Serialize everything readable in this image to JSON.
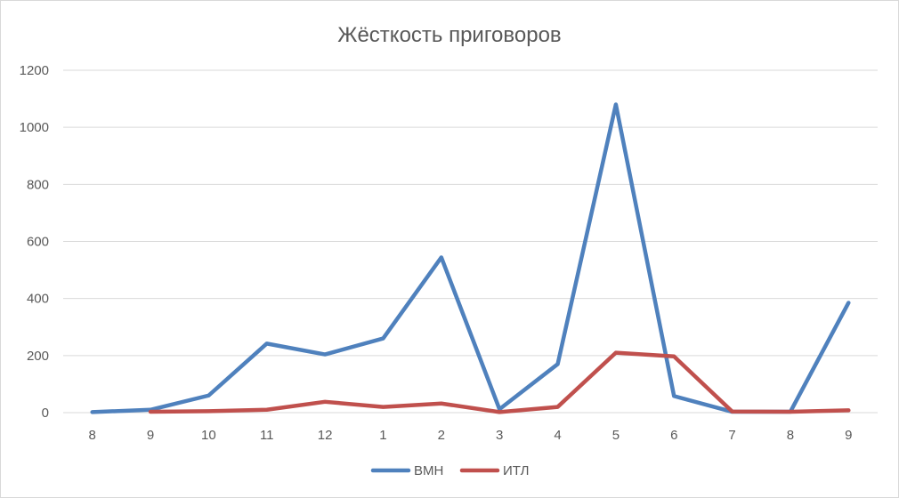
{
  "chart_data": {
    "type": "line",
    "title": "Жёсткость приговоров",
    "xlabel": "",
    "ylabel": "",
    "categories": [
      "8",
      "9",
      "10",
      "11",
      "12",
      "1",
      "2",
      "3",
      "4",
      "5",
      "6",
      "7",
      "8",
      "9"
    ],
    "ylim": [
      0,
      1200
    ],
    "yticks": [
      0,
      200,
      400,
      600,
      800,
      1000,
      1200
    ],
    "grid": true,
    "legend": "bottom",
    "series": [
      {
        "name": "ВМН",
        "color": "#4f81bd",
        "values": [
          2,
          10,
          60,
          242,
          204,
          260,
          544,
          12,
          170,
          1080,
          58,
          3,
          3,
          385
        ]
      },
      {
        "name": "ИТЛ",
        "color": "#c0504d",
        "values": [
          null,
          3,
          5,
          10,
          38,
          20,
          32,
          2,
          20,
          210,
          197,
          4,
          3,
          8
        ]
      }
    ]
  }
}
